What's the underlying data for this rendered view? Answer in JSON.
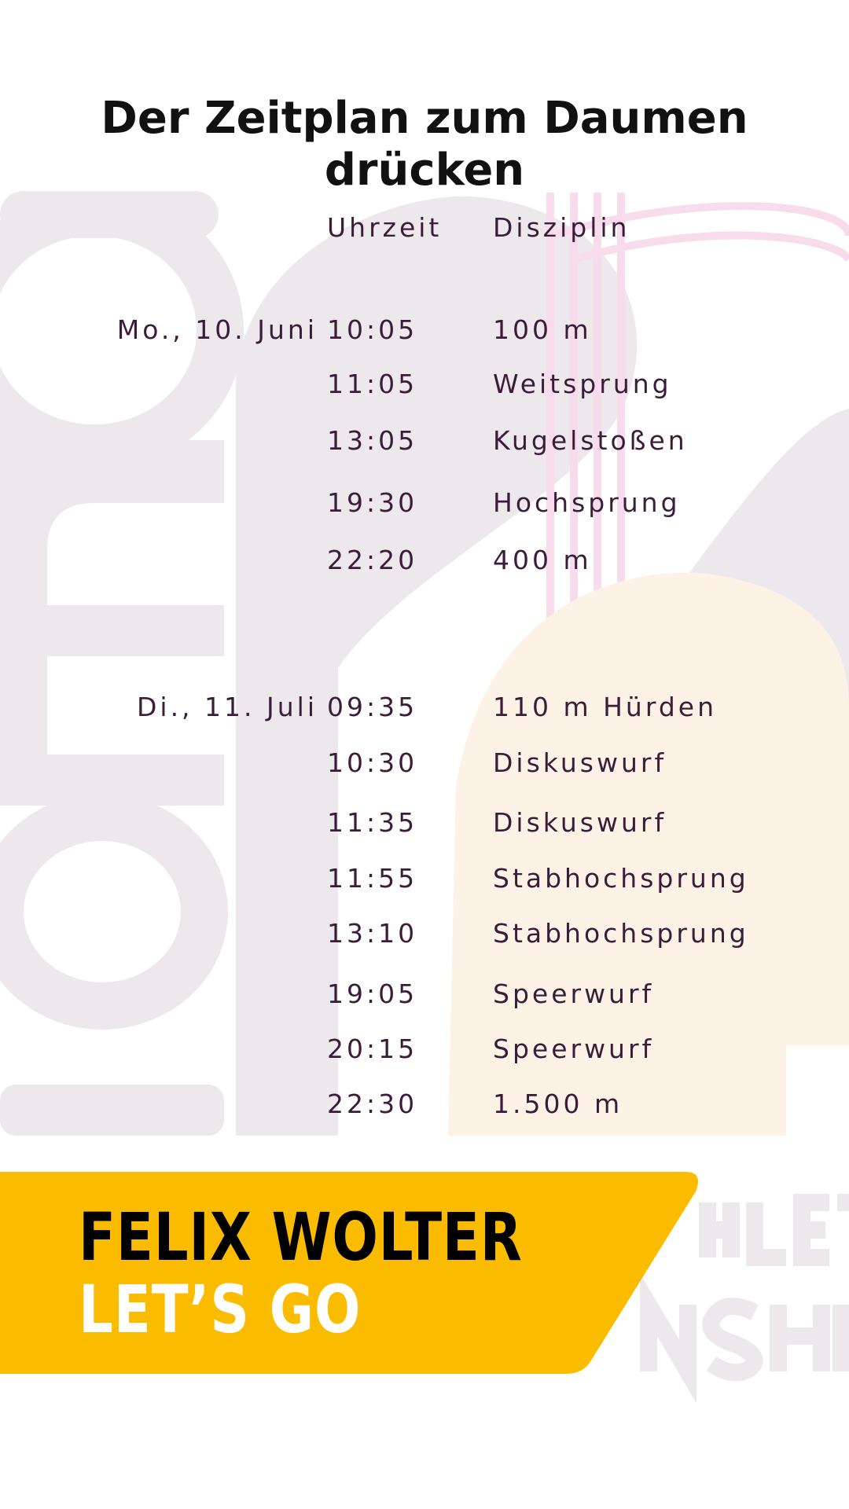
{
  "title": "Der Zeitplan zum Daumen drücken",
  "colors": {
    "accent": "#FBBC00",
    "text": "#3b1d3a",
    "watermark": "#EDE8EC"
  },
  "table": {
    "headers": {
      "time": "Uhrzeit",
      "discipline": "Disziplin"
    },
    "rows": [
      {
        "date": "Mo., 10. Juni",
        "time": "10:05",
        "discipline": "100 m"
      },
      {
        "date": "",
        "time": "11:05",
        "discipline": "Weitsprung"
      },
      {
        "date": "",
        "time": "13:05",
        "discipline": "Kugelstoßen"
      },
      {
        "date": "",
        "time": "19:30",
        "discipline": "Hochsprung"
      },
      {
        "date": "",
        "time": "22:20",
        "discipline": "400 m"
      },
      {
        "date": "Di., 11. Juli",
        "time": "09:35",
        "discipline": "110 m Hürden"
      },
      {
        "date": "",
        "time": "10:30",
        "discipline": "Diskuswurf"
      },
      {
        "date": "",
        "time": "11:35",
        "discipline": "Diskuswurf"
      },
      {
        "date": "",
        "time": "11:55",
        "discipline": "Stabhochsprung"
      },
      {
        "date": "",
        "time": "13:10",
        "discipline": "Stabhochsprung"
      },
      {
        "date": "",
        "time": "19:05",
        "discipline": "Speerwurf"
      },
      {
        "date": "",
        "time": "20:15",
        "discipline": "Speerwurf"
      },
      {
        "date": "",
        "time": "22:30",
        "discipline": "1.500 m"
      }
    ]
  },
  "banner": {
    "line1": "FELIX WOLTER",
    "line2": "LET’S GO"
  }
}
